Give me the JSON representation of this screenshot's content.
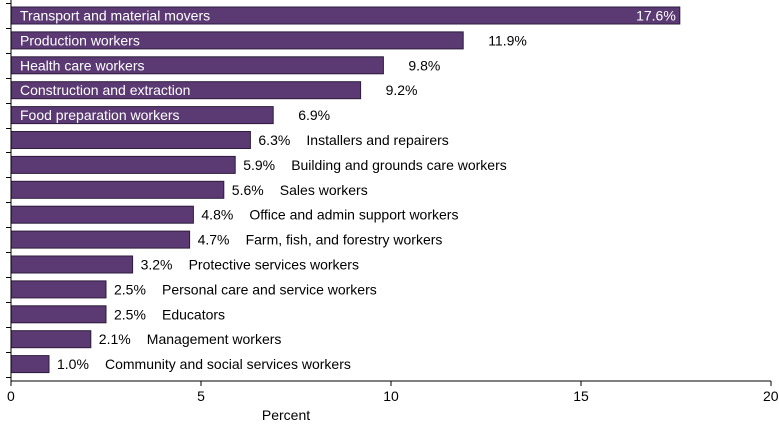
{
  "chart_data": {
    "type": "bar",
    "orientation": "horizontal",
    "xlabel": "Percent",
    "xlim": [
      0,
      20
    ],
    "xticks": [
      0,
      5,
      10,
      15,
      20
    ],
    "bar_color": "#5b3a73",
    "grid": false,
    "categories": [
      "Transport and material movers",
      "Production  workers",
      "Health care workers",
      "Construction and extraction",
      "Food preparation workers",
      "Installers and repairers",
      "Building and grounds care workers",
      "Sales workers",
      "Office and admin support workers",
      "Farm, fish, and forestry workers",
      "Protective services workers",
      "Personal care and service workers",
      "Educators",
      "Management workers",
      "Community and social services workers"
    ],
    "values": [
      17.6,
      11.9,
      9.8,
      9.2,
      6.9,
      6.3,
      5.9,
      5.6,
      4.8,
      4.7,
      3.2,
      2.5,
      2.5,
      2.1,
      1.0
    ],
    "value_labels": [
      "17.6%",
      "11.9%",
      "9.8%",
      "9.2%",
      "6.9%",
      "6.3%",
      "5.9%",
      "5.6%",
      "4.8%",
      "4.7%",
      "3.2%",
      "2.5%",
      "2.5%",
      "2.1%",
      "1.0%"
    ],
    "label_inside": [
      true,
      true,
      true,
      true,
      true,
      false,
      false,
      false,
      false,
      false,
      false,
      false,
      false,
      false,
      false
    ]
  }
}
